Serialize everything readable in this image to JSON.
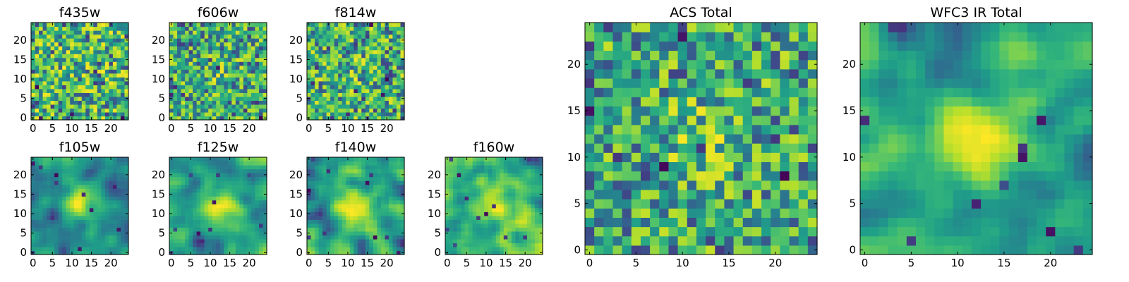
{
  "chart_data": [
    {
      "type": "heatmap",
      "title": "f435w",
      "xticks": [
        "0",
        "5",
        "10",
        "15",
        "20"
      ],
      "yticks": [
        "0",
        "5",
        "10",
        "15",
        "20"
      ],
      "xlim": [
        -0.5,
        24.5
      ],
      "ylim": [
        -0.5,
        24.5
      ],
      "grid_size": [
        25,
        25
      ],
      "smooth": 0,
      "blob": 0.05,
      "colormap": "viridis"
    },
    {
      "type": "heatmap",
      "title": "f606w",
      "xticks": [
        "0",
        "5",
        "10",
        "15",
        "20"
      ],
      "yticks": [
        "0",
        "5",
        "10",
        "15",
        "20"
      ],
      "xlim": [
        -0.5,
        24.5
      ],
      "ylim": [
        -0.5,
        24.5
      ],
      "grid_size": [
        25,
        25
      ],
      "smooth": 0,
      "blob": 0.15,
      "colormap": "viridis"
    },
    {
      "type": "heatmap",
      "title": "f814w",
      "xticks": [
        "0",
        "5",
        "10",
        "15",
        "20"
      ],
      "yticks": [
        "0",
        "5",
        "10",
        "15",
        "20"
      ],
      "xlim": [
        -0.5,
        24.5
      ],
      "ylim": [
        -0.5,
        24.5
      ],
      "grid_size": [
        25,
        25
      ],
      "smooth": 0,
      "blob": 0.1,
      "colormap": "viridis"
    },
    {
      "type": "heatmap",
      "title": "f105w",
      "xticks": [
        "0",
        "5",
        "10",
        "15",
        "20"
      ],
      "yticks": [
        "0",
        "5",
        "10",
        "15",
        "20"
      ],
      "xlim": [
        -0.5,
        24.5
      ],
      "ylim": [
        -0.5,
        24.5
      ],
      "grid_size": [
        25,
        25
      ],
      "smooth": 2,
      "blob": 0.35,
      "colormap": "viridis"
    },
    {
      "type": "heatmap",
      "title": "f125w",
      "xticks": [
        "0",
        "5",
        "10",
        "15",
        "20"
      ],
      "yticks": [
        "0",
        "5",
        "10",
        "15",
        "20"
      ],
      "xlim": [
        -0.5,
        24.5
      ],
      "ylim": [
        -0.5,
        24.5
      ],
      "grid_size": [
        25,
        25
      ],
      "smooth": 2,
      "blob": 0.35,
      "colormap": "viridis"
    },
    {
      "type": "heatmap",
      "title": "f140w",
      "xticks": [
        "0",
        "5",
        "10",
        "15",
        "20"
      ],
      "yticks": [
        "0",
        "5",
        "10",
        "15",
        "20"
      ],
      "xlim": [
        -0.5,
        24.5
      ],
      "ylim": [
        -0.5,
        24.5
      ],
      "grid_size": [
        25,
        25
      ],
      "smooth": 2,
      "blob": 0.3,
      "colormap": "viridis"
    },
    {
      "type": "heatmap",
      "title": "f160w",
      "xticks": [
        "0",
        "5",
        "10",
        "15",
        "20"
      ],
      "yticks": [
        "0",
        "5",
        "10",
        "15",
        "20"
      ],
      "xlim": [
        -0.5,
        24.5
      ],
      "ylim": [
        -0.5,
        24.5
      ],
      "grid_size": [
        25,
        25
      ],
      "smooth": 2,
      "blob": 0.2,
      "colormap": "viridis"
    },
    {
      "type": "heatmap",
      "title": "ACS Total",
      "xticks": [
        "0",
        "5",
        "10",
        "15",
        "20"
      ],
      "yticks": [
        "0",
        "5",
        "10",
        "15",
        "20"
      ],
      "xlim": [
        -0.5,
        24.5
      ],
      "ylim": [
        -0.5,
        24.5
      ],
      "grid_size": [
        25,
        25
      ],
      "smooth": 0,
      "blob": 0.2,
      "colormap": "viridis"
    },
    {
      "type": "heatmap",
      "title": "WFC3 IR Total",
      "xticks": [
        "0",
        "5",
        "10",
        "15",
        "20"
      ],
      "yticks": [
        "0",
        "5",
        "10",
        "15",
        "20"
      ],
      "xlim": [
        -0.5,
        24.5
      ],
      "ylim": [
        -0.5,
        24.5
      ],
      "grid_size": [
        25,
        25
      ],
      "smooth": 2,
      "blob": 0.45,
      "colormap": "viridis"
    }
  ]
}
